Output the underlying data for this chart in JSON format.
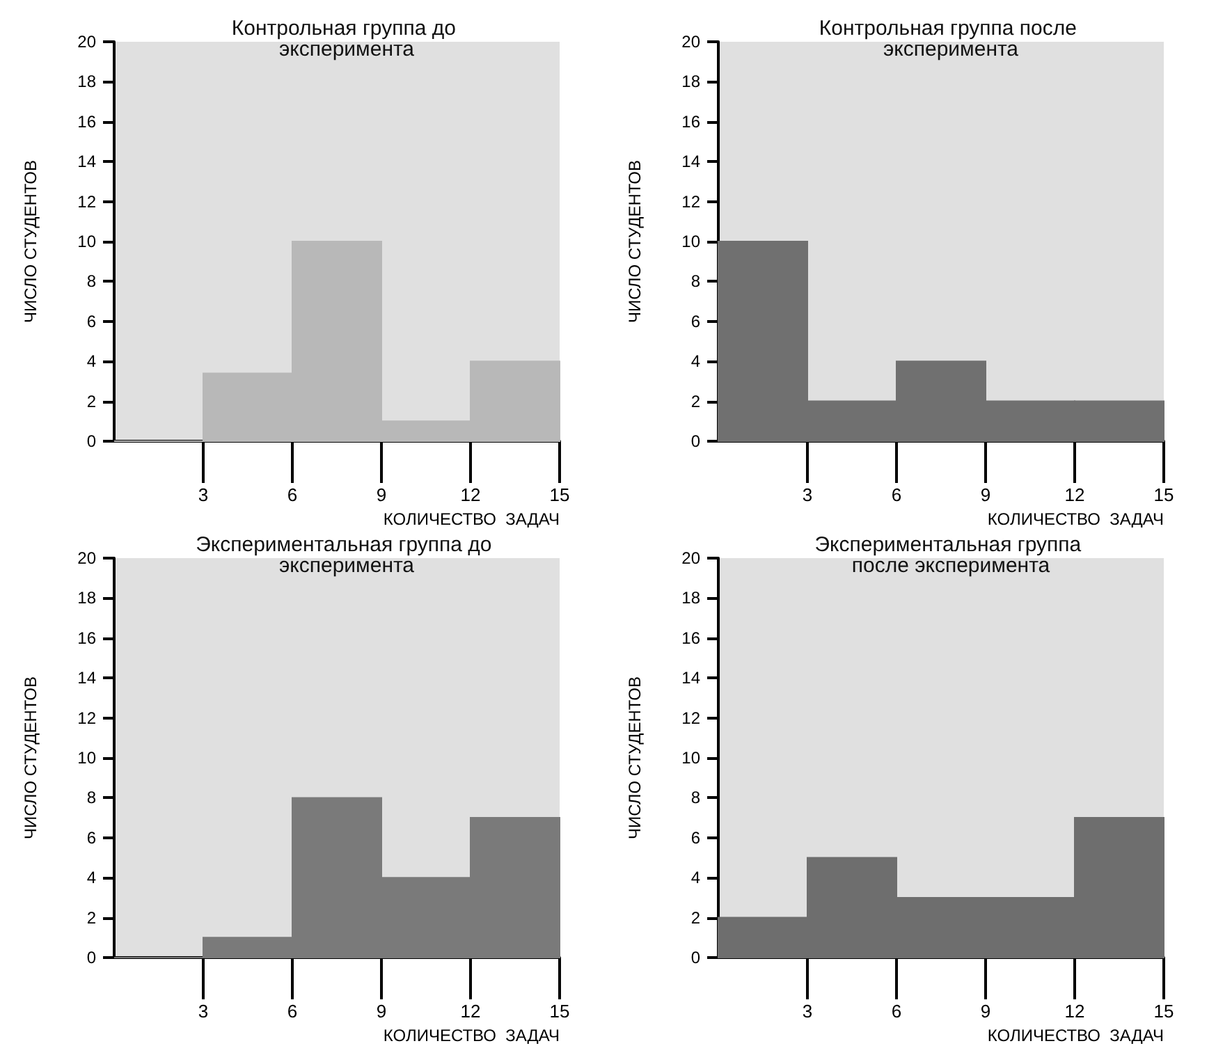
{
  "chart_data": [
    {
      "type": "histogram",
      "title": "Контрольная группа до эксперимента",
      "xlabel": "КОЛИЧЕСТВО  ЗАДАЧ",
      "ylabel": "ЧИСЛО СТУДЕНТОВ",
      "bins": [
        0,
        3,
        6,
        9,
        12,
        15
      ],
      "values": [
        0,
        3.4,
        10,
        1,
        4
      ],
      "color": "#b8b8b8",
      "xlim": [
        0,
        15
      ],
      "xticks": [
        3,
        6,
        9,
        12,
        15
      ],
      "ylim": [
        0,
        20
      ],
      "yticks": [
        0,
        2,
        4,
        6,
        8,
        10,
        12,
        14,
        16,
        18,
        20
      ],
      "grid": false
    },
    {
      "type": "histogram",
      "title": "Контрольная группа после эксперимента",
      "xlabel": "КОЛИЧЕСТВО  ЗАДАЧ",
      "ylabel": "ЧИСЛО СТУДЕНТОВ",
      "bins": [
        0,
        3,
        6,
        9,
        12,
        15
      ],
      "values": [
        10,
        2,
        4,
        2,
        2
      ],
      "color": "#707070",
      "xlim": [
        0,
        15
      ],
      "xticks": [
        3,
        6,
        9,
        12,
        15
      ],
      "ylim": [
        0,
        20
      ],
      "yticks": [
        0,
        2,
        4,
        6,
        8,
        10,
        12,
        14,
        16,
        18,
        20
      ],
      "grid": false
    },
    {
      "type": "histogram",
      "title": "Экспериментальная группа до эксперимента",
      "xlabel": "КОЛИЧЕСТВО  ЗАДАЧ",
      "ylabel": "ЧИСЛО СТУДЕНТОВ",
      "bins": [
        0,
        3,
        6,
        9,
        12,
        15
      ],
      "values": [
        0,
        1,
        8,
        4,
        7
      ],
      "color": "#7a7a7a",
      "xlim": [
        0,
        15
      ],
      "xticks": [
        3,
        6,
        9,
        12,
        15
      ],
      "ylim": [
        0,
        20
      ],
      "yticks": [
        0,
        2,
        4,
        6,
        8,
        10,
        12,
        14,
        16,
        18,
        20
      ],
      "grid": false
    },
    {
      "type": "histogram",
      "title": "Экспериментальная группа после эксперимента",
      "xlabel": "КОЛИЧЕСТВО  ЗАДАЧ",
      "ylabel": "ЧИСЛО СТУДЕНТОВ",
      "bins": [
        0,
        3,
        6,
        9,
        12,
        15
      ],
      "values": [
        2,
        5,
        3,
        3,
        7
      ],
      "color": "#6e6e6e",
      "xlim": [
        0,
        15
      ],
      "xticks": [
        3,
        6,
        9,
        12,
        15
      ],
      "ylim": [
        0,
        20
      ],
      "yticks": [
        0,
        2,
        4,
        6,
        8,
        10,
        12,
        14,
        16,
        18,
        20
      ],
      "grid": false
    }
  ]
}
